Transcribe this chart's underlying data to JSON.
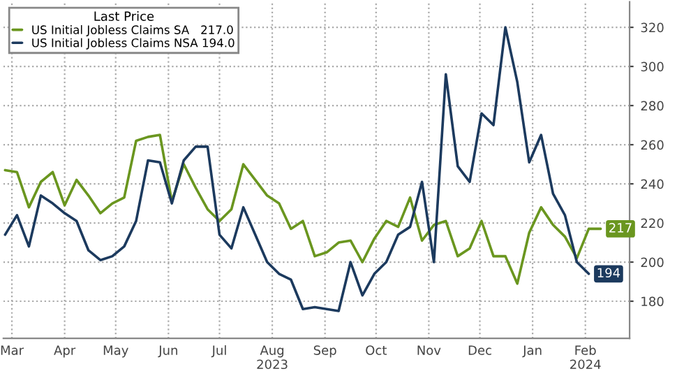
{
  "chart_data": {
    "type": "line",
    "legend_title": "Last Price",
    "x": [
      "2023-03-11",
      "2023-03-18",
      "2023-03-25",
      "2023-04-01",
      "2023-04-08",
      "2023-04-15",
      "2023-04-22",
      "2023-04-29",
      "2023-05-06",
      "2023-05-13",
      "2023-05-20",
      "2023-05-27",
      "2023-06-03",
      "2023-06-10",
      "2023-06-17",
      "2023-06-24",
      "2023-07-01",
      "2023-07-08",
      "2023-07-15",
      "2023-07-22",
      "2023-07-29",
      "2023-08-05",
      "2023-08-12",
      "2023-08-19",
      "2023-08-26",
      "2023-09-02",
      "2023-09-09",
      "2023-09-16",
      "2023-09-23",
      "2023-09-30",
      "2023-10-07",
      "2023-10-14",
      "2023-10-21",
      "2023-10-28",
      "2023-11-04",
      "2023-11-11",
      "2023-11-18",
      "2023-11-25",
      "2023-12-02",
      "2023-12-09",
      "2023-12-16",
      "2023-12-23",
      "2023-12-30",
      "2024-01-06",
      "2024-01-13",
      "2024-01-20",
      "2024-01-27",
      "2024-02-03",
      "2024-02-10",
      "2024-02-17",
      "2024-02-24"
    ],
    "series": [
      {
        "name": "US Initial Jobless Claims SA   217.0",
        "color": "#6a961f",
        "values": [
          247,
          246,
          228,
          241,
          246,
          229,
          242,
          234,
          225,
          230,
          233,
          262,
          264,
          265,
          231,
          250,
          238,
          227,
          221,
          227,
          250,
          242,
          234,
          230,
          217,
          221,
          203,
          205,
          210,
          211,
          200,
          212,
          221,
          218,
          233,
          211,
          219,
          221,
          203,
          207,
          221,
          203,
          203,
          189,
          215,
          228,
          219,
          213,
          202,
          217,
          217
        ],
        "value_labels": [
          null,
          null,
          null,
          null,
          null,
          null,
          null,
          null,
          null,
          null,
          null,
          null,
          null,
          null,
          null,
          null,
          null,
          null,
          null,
          null,
          null,
          null,
          null,
          null,
          null,
          null,
          null,
          null,
          null,
          null,
          null,
          null,
          null,
          null,
          null,
          null,
          null,
          null,
          null,
          null,
          null,
          null,
          null,
          null,
          null,
          null,
          null,
          null,
          null,
          null,
          "217"
        ]
      },
      {
        "name": "US Initial Jobless Claims NSA 194.0",
        "color": "#1c3a5e",
        "values": [
          214,
          224,
          208,
          234,
          230,
          225,
          221,
          206,
          201,
          203,
          208,
          221,
          252,
          251,
          230,
          252,
          259,
          259,
          214,
          207,
          228,
          214,
          200,
          194,
          191,
          176,
          177,
          176,
          175,
          200,
          183,
          194,
          200,
          214,
          218,
          241,
          200,
          296,
          249,
          241,
          276,
          270,
          320,
          292,
          251,
          265,
          235,
          224,
          200,
          194,
          null
        ],
        "value_labels": [
          null,
          null,
          null,
          null,
          null,
          null,
          null,
          null,
          null,
          null,
          null,
          null,
          null,
          null,
          null,
          null,
          null,
          null,
          null,
          null,
          null,
          null,
          null,
          null,
          null,
          null,
          null,
          null,
          null,
          null,
          null,
          null,
          null,
          null,
          null,
          null,
          null,
          null,
          null,
          null,
          null,
          null,
          null,
          null,
          null,
          null,
          null,
          null,
          null,
          "194",
          null
        ]
      }
    ],
    "xlim": [
      "2023-03-10",
      "2024-03-12"
    ],
    "xticks": [
      {
        "value": "2023-03-15",
        "label": "Mar"
      },
      {
        "value": "2023-04-15",
        "label": "Apr"
      },
      {
        "value": "2023-05-15",
        "label": "May"
      },
      {
        "value": "2023-06-15",
        "label": "Jun"
      },
      {
        "value": "2023-07-15",
        "label": "Jul"
      },
      {
        "value": "2023-08-15",
        "label": "Aug\n2023"
      },
      {
        "value": "2023-09-15",
        "label": "Sep"
      },
      {
        "value": "2023-10-15",
        "label": "Oct"
      },
      {
        "value": "2023-11-15",
        "label": "Nov"
      },
      {
        "value": "2023-12-15",
        "label": "Dec"
      },
      {
        "value": "2024-01-15",
        "label": "Jan"
      },
      {
        "value": "2024-02-15",
        "label": "Feb\n2024"
      }
    ],
    "ylim": [
      161,
      333
    ],
    "yticks": [
      180,
      200,
      220,
      240,
      260,
      280,
      300,
      320
    ],
    "grid": true,
    "legend": "top left",
    "line_style": "solid",
    "marker": "none"
  }
}
